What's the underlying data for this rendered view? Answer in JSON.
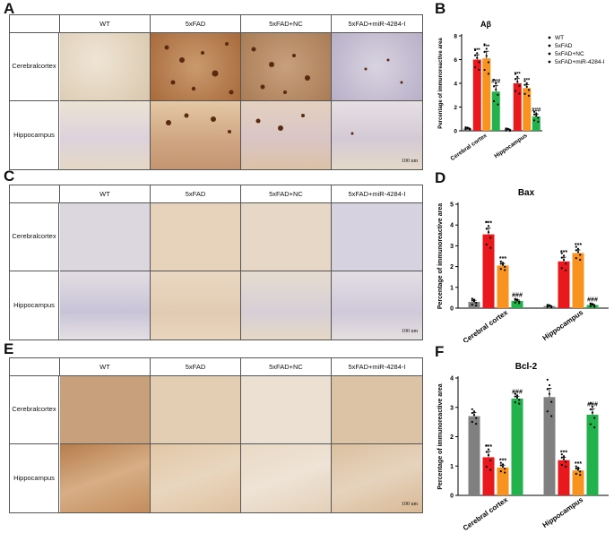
{
  "panels": {
    "A": "A",
    "B": "B",
    "C": "C",
    "D": "D",
    "E": "E",
    "F": "F"
  },
  "groups": [
    "WT",
    "5xFAD",
    "5xFAD+NC",
    "5xFAD+miR-4284-I"
  ],
  "regions": {
    "cortex_line1": "Cerebral",
    "cortex_line2": "cortex",
    "hippocampus": "Hippocampus"
  },
  "scale_label": "100 um",
  "colors": {
    "WT": "#808080",
    "5xFAD": "#e8181c",
    "5xFAD+NC": "#f7931e",
    "5xFAD+miR-4284-I": "#22b24c"
  },
  "chart_data": [
    {
      "type": "bar",
      "panel": "B",
      "title": "Aβ",
      "ylabel": "Percentage of immunoreactive area",
      "categories": [
        "Cerebral cortex",
        "Hippocampus"
      ],
      "ylim": [
        0,
        8
      ],
      "yticks": [
        "0",
        "2",
        "4",
        "6",
        "8"
      ],
      "legend": [
        "WT",
        "5xFAD",
        "5xFAD+NC",
        "5xFAD+miR-4284-I"
      ],
      "legend_position": "top-right",
      "series": [
        {
          "name": "WT",
          "values": [
            0.2,
            0.1
          ],
          "errors": [
            0.05,
            0.05
          ]
        },
        {
          "name": "5xFAD",
          "values": [
            6.0,
            4.0
          ],
          "errors": [
            0.4,
            0.4
          ]
        },
        {
          "name": "5xFAD+NC",
          "values": [
            6.1,
            3.6
          ],
          "errors": [
            0.6,
            0.3
          ]
        },
        {
          "name": "5xFAD+miR-4284-I",
          "values": [
            3.3,
            1.2
          ],
          "errors": [
            0.5,
            0.2
          ]
        }
      ],
      "annotations": [
        [
          "",
          "***",
          "***",
          "###"
        ],
        [
          "",
          "***",
          "***",
          "###"
        ]
      ]
    },
    {
      "type": "bar",
      "panel": "D",
      "title": "Bax",
      "ylabel": "Percentage of immunoreactive area",
      "categories": [
        "Cerebral cortex",
        "Hippocampus"
      ],
      "ylim": [
        0,
        5
      ],
      "yticks": [
        "0",
        "1",
        "2",
        "3",
        "4",
        "5"
      ],
      "series": [
        {
          "name": "WT",
          "values": [
            0.3,
            0.1
          ],
          "errors": [
            0.08,
            0.03
          ]
        },
        {
          "name": "5xFAD",
          "values": [
            3.55,
            2.25
          ],
          "errors": [
            0.3,
            0.2
          ]
        },
        {
          "name": "5xFAD+NC",
          "values": [
            2.05,
            2.65
          ],
          "errors": [
            0.1,
            0.15
          ]
        },
        {
          "name": "5xFAD+miR-4284-I",
          "values": [
            0.35,
            0.15
          ],
          "errors": [
            0.05,
            0.04
          ]
        }
      ],
      "annotations": [
        [
          "",
          "***",
          "***",
          "###"
        ],
        [
          "",
          "***",
          "***",
          "###"
        ]
      ]
    },
    {
      "type": "bar",
      "panel": "F",
      "title": "Bcl-2",
      "ylabel": "Percentage of immunoreactive area",
      "categories": [
        "Cerebral cortex",
        "Hippocampus"
      ],
      "ylim": [
        0,
        4
      ],
      "yticks": [
        "0",
        "1",
        "2",
        "3",
        "4"
      ],
      "series": [
        {
          "name": "WT",
          "values": [
            2.7,
            3.35
          ],
          "errors": [
            0.12,
            0.3
          ]
        },
        {
          "name": "5xFAD",
          "values": [
            1.3,
            1.2
          ],
          "errors": [
            0.2,
            0.1
          ]
        },
        {
          "name": "5xFAD+NC",
          "values": [
            0.95,
            0.85
          ],
          "errors": [
            0.08,
            0.07
          ]
        },
        {
          "name": "5xFAD+miR-4284-I",
          "values": [
            3.3,
            2.75
          ],
          "errors": [
            0.08,
            0.2
          ]
        }
      ],
      "annotations": [
        [
          "",
          "***",
          "***",
          "###"
        ],
        [
          "",
          "***",
          "***",
          "###"
        ]
      ]
    }
  ]
}
